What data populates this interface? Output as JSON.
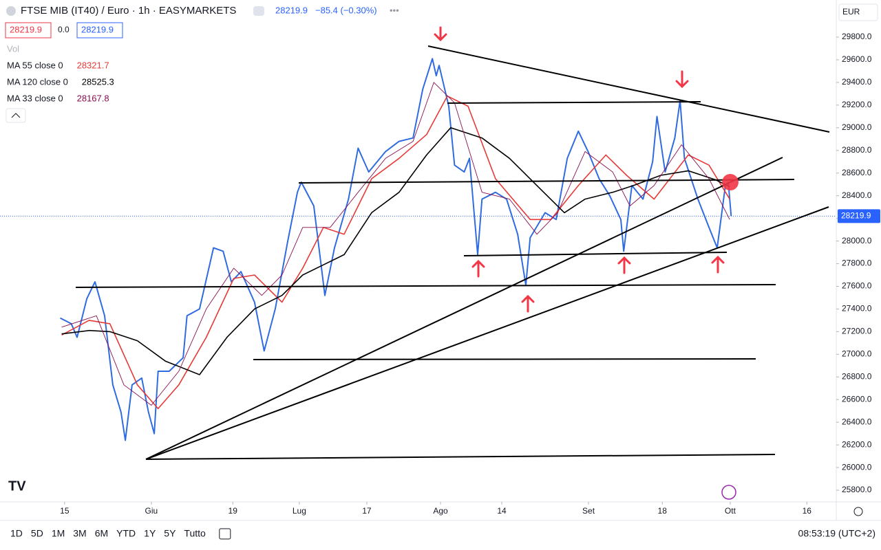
{
  "chart_data": {
    "type": "line",
    "title": "FTSE MIB (IT40) / Euro · 1h · EASYMARKETS",
    "header_price": "28219.9",
    "header_change": "−85.4 (−0.30%)",
    "bid": "28219.9",
    "spread": "0.0",
    "ask": "28219.9",
    "vol_label": "Vol",
    "currency": "EUR",
    "last_price": 28219.9,
    "last_price_label": "28219.9",
    "grid": false,
    "xlim": [
      -13.4,
      160.1
    ],
    "ylim": [
      25697,
      30128
    ],
    "xticks": [
      {
        "value": 0,
        "label": "15"
      },
      {
        "value": 18,
        "label": "Giu"
      },
      {
        "value": 34.9,
        "label": "19"
      },
      {
        "value": 48.7,
        "label": "Lug"
      },
      {
        "value": 62.7,
        "label": "17"
      },
      {
        "value": 78,
        "label": "Ago"
      },
      {
        "value": 90.7,
        "label": "14"
      },
      {
        "value": 108.7,
        "label": "Set"
      },
      {
        "value": 124,
        "label": "18"
      },
      {
        "value": 138.1,
        "label": "Ott"
      },
      {
        "value": 154,
        "label": "16"
      }
    ],
    "yticks": [
      {
        "value": 25800,
        "label": "25800.0"
      },
      {
        "value": 26000,
        "label": "26000.0"
      },
      {
        "value": 26200,
        "label": "26200.0"
      },
      {
        "value": 26400,
        "label": "26400.0"
      },
      {
        "value": 26600,
        "label": "26600.0"
      },
      {
        "value": 26800,
        "label": "26800.0"
      },
      {
        "value": 27000,
        "label": "27000.0"
      },
      {
        "value": 27200,
        "label": "27200.0"
      },
      {
        "value": 27400,
        "label": "27400.0"
      },
      {
        "value": 27600,
        "label": "27600.0"
      },
      {
        "value": 27800,
        "label": "27800.0"
      },
      {
        "value": 28000,
        "label": "28000.0"
      },
      {
        "value": 28200,
        "label": "28200.0"
      },
      {
        "value": 28400,
        "label": "28400.0"
      },
      {
        "value": 28600,
        "label": "28600.0"
      },
      {
        "value": 28800,
        "label": "28800.0"
      },
      {
        "value": 29000,
        "label": "29000.0"
      },
      {
        "value": 29200,
        "label": "29200.0"
      },
      {
        "value": 29400,
        "label": "29400.0"
      },
      {
        "value": 29600,
        "label": "29600.0"
      },
      {
        "value": 29800,
        "label": "29800.0"
      }
    ],
    "series": [
      {
        "color": "#2f6be0",
        "width": 2,
        "x": [
          -0.9,
          1.4,
          2.6,
          4.6,
          6.3,
          8.3,
          10,
          11.7,
          12.6,
          14,
          16,
          17.4,
          18.6,
          19.4,
          21.7,
          24.6,
          25.4,
          28,
          30.9,
          32.9,
          34.6,
          36.6,
          39.4,
          41.4,
          43.7,
          46.3,
          48.3,
          49.1,
          51.7,
          54,
          56,
          58.9,
          60.9,
          63.1,
          66.6,
          69.4,
          72.3,
          74.3,
          76.3,
          77.1,
          77.7,
          79.7,
          80.9,
          82.9,
          84,
          85.7,
          86.6,
          89.4,
          91.7,
          94,
          95.7,
          96.6,
          99.7,
          102,
          104.3,
          106.6,
          108.6,
          110.9,
          113.1,
          115.4,
          116,
          117.7,
          120,
          122,
          122.9,
          124.6,
          126.6,
          127.7,
          128.6,
          131.4,
          133.7,
          135.4,
          137.1,
          137.7,
          138.3
        ],
        "values": [
          27320,
          27270,
          27150,
          27490,
          27640,
          27340,
          26730,
          26490,
          26240,
          26730,
          26790,
          26490,
          26300,
          26850,
          26850,
          26970,
          27340,
          27400,
          27940,
          27910,
          27640,
          27730,
          27460,
          27030,
          27400,
          28000,
          28430,
          28520,
          28310,
          27520,
          27940,
          28370,
          28820,
          28610,
          28790,
          28880,
          28910,
          29340,
          29610,
          29460,
          29550,
          29190,
          28670,
          28610,
          28730,
          27880,
          28370,
          28430,
          28370,
          28060,
          27610,
          28030,
          28250,
          28190,
          28730,
          28970,
          28790,
          28550,
          28400,
          28190,
          27910,
          28490,
          28370,
          28700,
          29100,
          28610,
          28910,
          29240,
          28730,
          28370,
          28120,
          27940,
          28490,
          28520,
          28220
        ]
      },
      {
        "name": "MA 55 close 0",
        "last_value": "28321.7",
        "color": "#e53935",
        "width": 1.6,
        "x": [
          -0.6,
          5.1,
          9.4,
          15.1,
          19.4,
          23.7,
          29.4,
          35.1,
          39.4,
          45.1,
          49.4,
          53.7,
          58,
          63.7,
          69.4,
          75.1,
          79.4,
          83.7,
          89.4,
          96.6,
          100.9,
          106.6,
          112.3,
          116.6,
          122.3,
          129.4,
          133.7,
          138
        ],
        "values": [
          27170,
          27300,
          27270,
          26730,
          26520,
          26730,
          27150,
          27670,
          27700,
          27460,
          27760,
          28120,
          28060,
          28550,
          28730,
          28940,
          29280,
          29190,
          28550,
          28190,
          28190,
          28490,
          28760,
          28580,
          28370,
          28760,
          28670,
          28370
        ]
      },
      {
        "name": "MA 120 close 0",
        "last_value": "28525.3",
        "color": "#000000",
        "width": 1.6,
        "x": [
          -0.6,
          5.1,
          9.4,
          15.1,
          20.9,
          28,
          33.7,
          39.4,
          45.1,
          49.4,
          53.7,
          58,
          63.7,
          69.4,
          75.1,
          80.1,
          86.6,
          92.3,
          98,
          103.7,
          108,
          113.7,
          118,
          123.7,
          129.4,
          135.1,
          138
        ],
        "values": [
          27180,
          27210,
          27200,
          27120,
          26940,
          26820,
          27150,
          27400,
          27520,
          27700,
          27790,
          27880,
          28250,
          28430,
          28760,
          29000,
          28910,
          28730,
          28490,
          28250,
          28370,
          28430,
          28490,
          28580,
          28620,
          28540,
          28480
        ]
      },
      {
        "name": "MA 33 close 0",
        "last_value": "28167.8",
        "color": "#880e4f",
        "width": 0.9,
        "x": [
          -0.6,
          6.6,
          12.3,
          18,
          23.7,
          29.4,
          35.1,
          40.9,
          45.1,
          49.4,
          55.1,
          60.9,
          66.6,
          72.3,
          76.6,
          80.9,
          86.6,
          92.3,
          98,
          102.3,
          108,
          113.7,
          117.3,
          122.3,
          128,
          133.7,
          138
        ],
        "values": [
          27240,
          27340,
          26730,
          26550,
          26850,
          27400,
          27760,
          27520,
          27700,
          28120,
          28120,
          28430,
          28730,
          28880,
          29400,
          29220,
          28430,
          28370,
          28060,
          28250,
          28790,
          28610,
          28310,
          28490,
          28850,
          28550,
          28190
        ]
      }
    ],
    "timeframes": [
      "1D",
      "5D",
      "1M",
      "3M",
      "6M",
      "YTD",
      "1Y",
      "5Y",
      "Tutto"
    ],
    "clock": "08:53:19 (UTC+2)"
  }
}
